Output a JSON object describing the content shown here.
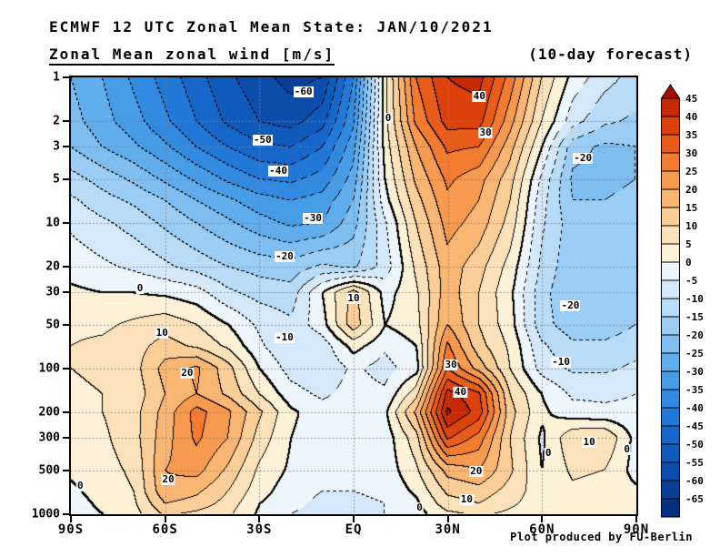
{
  "header": {
    "line1": "ECMWF 12 UTC Zonal Mean State: JAN/10/2021",
    "line2_left": "Zonal Mean zonal wind [m/s]",
    "line2_right": "(10-day forecast)"
  },
  "footer": {
    "credit": "Plot produced by FU-Berlin"
  },
  "axes": {
    "x": {
      "ticks": [
        {
          "lat": -90,
          "label": "90S"
        },
        {
          "lat": -60,
          "label": "60S"
        },
        {
          "lat": -30,
          "label": "30S"
        },
        {
          "lat": 0,
          "label": "EQ"
        },
        {
          "lat": 30,
          "label": "30N"
        },
        {
          "lat": 60,
          "label": "60N"
        },
        {
          "lat": 90,
          "label": "90N"
        }
      ]
    },
    "y": {
      "scale": "log",
      "range_hPa": [
        1,
        1000
      ],
      "ticks": [
        {
          "p": 1,
          "label": "1"
        },
        {
          "p": 2,
          "label": "2"
        },
        {
          "p": 3,
          "label": "3"
        },
        {
          "p": 5,
          "label": "5"
        },
        {
          "p": 10,
          "label": "10"
        },
        {
          "p": 20,
          "label": "20"
        },
        {
          "p": 30,
          "label": "30"
        },
        {
          "p": 50,
          "label": "50"
        },
        {
          "p": 100,
          "label": "100"
        },
        {
          "p": 200,
          "label": "200"
        },
        {
          "p": 300,
          "label": "300"
        },
        {
          "p": 500,
          "label": "500"
        },
        {
          "p": 1000,
          "label": "1000"
        }
      ]
    },
    "grid": {
      "x_lats": [
        -60,
        -30,
        0,
        30,
        60
      ],
      "y_pressures": [
        2,
        3,
        5,
        10,
        20,
        30,
        50,
        100,
        200,
        300,
        500
      ]
    }
  },
  "colorbar": {
    "labels": [
      "45",
      "40",
      "35",
      "30",
      "25",
      "20",
      "15",
      "10",
      "5",
      "0",
      "-5",
      "-10",
      "-15",
      "-20",
      "-25",
      "-30",
      "-35",
      "-40",
      "-45",
      "-50",
      "-55",
      "-60",
      "-65"
    ],
    "colors_top_to_bottom": [
      "#a50f01",
      "#c52a04",
      "#dd420c",
      "#ea5c1a",
      "#f27b30",
      "#f69a50",
      "#f9b572",
      "#fbcd97",
      "#fce2ba",
      "#fdf2d8",
      "#edf5fd",
      "#d4e8fa",
      "#b8dbf7",
      "#9bcdf4",
      "#7ebdf0",
      "#61adec",
      "#479ce6",
      "#318adf",
      "#2178d6",
      "#1667c9",
      "#105abb",
      "#0c4dab",
      "#093f96",
      "#063080"
    ]
  },
  "chart_data": {
    "type": "contour",
    "title": "Zonal Mean zonal wind [m/s]",
    "units": "m/s",
    "x_axis": "latitude (90S to 90N)",
    "y_axis": "pressure hPa (1 to 1000, log scale)",
    "contour_interval_ms": 5,
    "lats": [
      -90,
      -80,
      -70,
      -60,
      -50,
      -40,
      -30,
      -20,
      -10,
      0,
      10,
      20,
      30,
      40,
      50,
      60,
      70,
      80,
      90
    ],
    "pressure_levels_hPa": [
      1,
      2,
      3,
      5,
      7,
      10,
      20,
      30,
      50,
      70,
      100,
      150,
      200,
      300,
      500,
      700,
      850,
      1000
    ],
    "u_wind": [
      [
        -25,
        -30,
        -36,
        -42,
        -48,
        -54,
        -58,
        -62,
        -60,
        -40,
        3,
        30,
        40,
        42,
        28,
        10,
        -2,
        -8,
        -12
      ],
      [
        -23,
        -28,
        -33,
        -39,
        -45,
        -51,
        -55,
        -57,
        -52,
        -36,
        3,
        26,
        37,
        37,
        22,
        5,
        -8,
        -14,
        -16
      ],
      [
        -20,
        -25,
        -29,
        -34,
        -40,
        -45,
        -49,
        -50,
        -45,
        -32,
        2,
        20,
        31,
        30,
        17,
        0,
        -18,
        -21,
        -20
      ],
      [
        -13,
        -17,
        -21,
        -26,
        -31,
        -36,
        -40,
        -41,
        -38,
        -28,
        0,
        16,
        26,
        22,
        12,
        -6,
        -21,
        -22,
        -20
      ],
      [
        -9,
        -13,
        -16,
        -20,
        -25,
        -29,
        -33,
        -35,
        -33,
        -25,
        -2,
        13,
        24,
        20,
        10,
        -8,
        -20,
        -20,
        -18
      ],
      [
        -6,
        -9,
        -12,
        -16,
        -20,
        -24,
        -28,
        -31,
        -30,
        -22,
        -6,
        10,
        22,
        18,
        8,
        -9,
        -18,
        -18,
        -17
      ],
      [
        -2,
        -4,
        -6,
        -9,
        -12,
        -15,
        -17,
        -18,
        -14,
        -16,
        -8,
        6,
        18,
        12,
        3,
        -11,
        -19,
        -19,
        -17
      ],
      [
        1,
        0,
        0,
        -1,
        -3,
        -9,
        -12,
        -13,
        0,
        12,
        -2,
        4,
        18,
        10,
        1,
        -13,
        -20,
        -20,
        -17
      ],
      [
        4,
        4,
        6,
        8,
        5,
        0,
        -6,
        -9,
        -2,
        13,
        0,
        3,
        20,
        10,
        2,
        -13,
        -18,
        -18,
        -15
      ],
      [
        5,
        6,
        8,
        12,
        9,
        4,
        -4,
        -10,
        -8,
        2,
        -4,
        0,
        26,
        12,
        4,
        -9,
        -14,
        -14,
        -12
      ],
      [
        5,
        6,
        8,
        17,
        21,
        12,
        0,
        -7,
        -9,
        -4,
        -7,
        -2,
        30,
        18,
        5,
        -7,
        -11,
        -11,
        -9
      ],
      [
        4,
        5,
        7,
        15,
        20,
        14,
        5,
        -3,
        -6,
        -3,
        -4,
        8,
        42,
        36,
        10,
        0,
        -6,
        -6,
        -5
      ],
      [
        3,
        5,
        8,
        17,
        27,
        21,
        11,
        1,
        -3,
        -2,
        -1,
        16,
        46,
        38,
        12,
        1,
        -3,
        -4,
        -4
      ],
      [
        2,
        4,
        8,
        18,
        26,
        20,
        8,
        0,
        -3,
        -4,
        -3,
        8,
        36,
        28,
        10,
        -1,
        9,
        10,
        -2
      ],
      [
        1,
        3,
        6,
        20,
        22,
        14,
        4,
        -1,
        -3,
        -3,
        -3,
        4,
        17,
        20,
        11,
        0,
        6,
        5,
        -2
      ],
      [
        -1,
        2,
        5,
        19,
        16,
        10,
        2,
        -3,
        -5,
        -5,
        -4,
        1,
        11,
        13,
        8,
        2,
        4,
        3,
        1
      ],
      [
        -2,
        1,
        4,
        15,
        13,
        8,
        0,
        -4,
        -6,
        -6,
        -5,
        -1,
        8,
        10,
        6,
        2,
        3,
        2,
        0
      ],
      [
        -2,
        0,
        3,
        11,
        9,
        6,
        -1,
        -5,
        -6,
        -6,
        -5,
        -2,
        4,
        6,
        4,
        2,
        2,
        1,
        0
      ]
    ],
    "contour_labels": [
      {
        "value": "-60",
        "lat": -16,
        "p": 1.25
      },
      {
        "value": "-50",
        "lat": -29,
        "p": 2.7
      },
      {
        "value": "-40",
        "lat": -24,
        "p": 4.4
      },
      {
        "value": "-30",
        "lat": -13,
        "p": 9.3
      },
      {
        "value": "-20",
        "lat": -22,
        "p": 17
      },
      {
        "value": "0",
        "lat": 11,
        "p": 1.9
      },
      {
        "value": "40",
        "lat": 40,
        "p": 1.35
      },
      {
        "value": "30",
        "lat": 42,
        "p": 2.4
      },
      {
        "value": "-20",
        "lat": 73,
        "p": 3.6
      },
      {
        "value": "0",
        "lat": -68,
        "p": 28
      },
      {
        "value": "10",
        "lat": 0,
        "p": 33
      },
      {
        "value": "-20",
        "lat": 69,
        "p": 37
      },
      {
        "value": "10",
        "lat": -61,
        "p": 57
      },
      {
        "value": "-10",
        "lat": -22,
        "p": 61
      },
      {
        "value": "-10",
        "lat": 66,
        "p": 90
      },
      {
        "value": "20",
        "lat": -53,
        "p": 108
      },
      {
        "value": "30",
        "lat": 31,
        "p": 95
      },
      {
        "value": "40",
        "lat": 34,
        "p": 145
      },
      {
        "value": "10",
        "lat": 75,
        "p": 320
      },
      {
        "value": "0",
        "lat": 62,
        "p": 380
      },
      {
        "value": "0",
        "lat": 87,
        "p": 360
      },
      {
        "value": "20",
        "lat": 39,
        "p": 510
      },
      {
        "value": "20",
        "lat": -59,
        "p": 580
      },
      {
        "value": "0",
        "lat": -87,
        "p": 640
      },
      {
        "value": "10",
        "lat": 36,
        "p": 790
      },
      {
        "value": "0",
        "lat": 21,
        "p": 900
      }
    ]
  }
}
